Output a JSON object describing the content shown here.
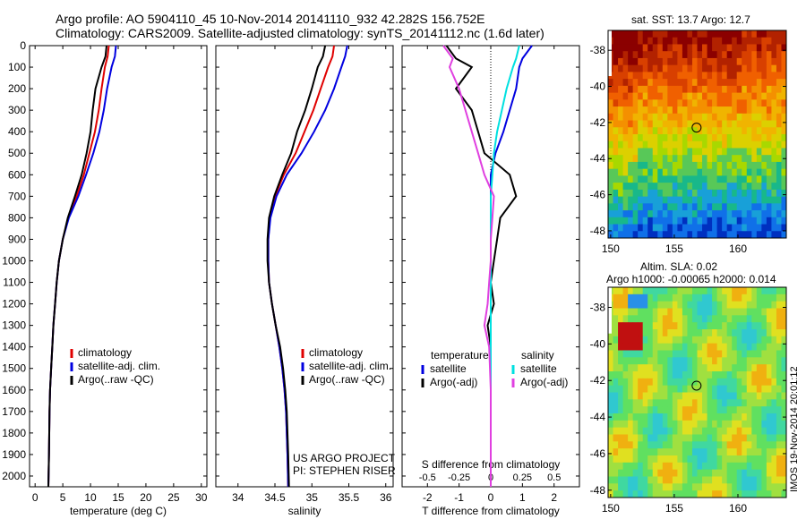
{
  "header": {
    "title_line1": "Argo profile: AO 5904110_45 10-Nov-2014 20141110_932 42.282S 156.752E",
    "title_line2": "Climatology: CARS2009. Satellite-adjusted climatology: synTS_20141112.nc (1.6d later)"
  },
  "colors": {
    "climatology": "#e00000",
    "satellite": "#0000e0",
    "argo": "#000000",
    "sal_satellite": "#00e0e0",
    "sal_argo": "#e040e0"
  },
  "depth_axis": {
    "ticks": [
      "0",
      "100",
      "200",
      "300",
      "400",
      "500",
      "600",
      "700",
      "800",
      "900",
      "1000",
      "1100",
      "1200",
      "1300",
      "1400",
      "1500",
      "1600",
      "1700",
      "1800",
      "1900",
      "2000"
    ]
  },
  "legend": {
    "climatology": "climatology",
    "satellite_adj": "satellite-adj. clim.",
    "argo": "Argo(..raw -QC)",
    "diff_temperature": "temperature",
    "diff_salinity": "salinity",
    "diff_satellite": "satellite",
    "diff_argo": "Argo(-adj)"
  },
  "project": {
    "line1": "US ARGO PROJECT",
    "line2": "PI: STEPHEN RISER"
  },
  "maps": {
    "sst_title": "sat. SST: 13.7 Argo: 12.7",
    "sla_title1": "Altim. SLA: 0.02",
    "sla_title2": "Argo h1000: -0.00065 h2000: 0.014",
    "lat_ticks": [
      "-38",
      "-40",
      "-42",
      "-44",
      "-46",
      "-48"
    ],
    "lon_ticks": [
      "150",
      "155",
      "160"
    ],
    "float_lat": -42.282,
    "float_lon": 156.752
  },
  "credit": "IMOS 19-Nov-2014 20:01:12",
  "chart_data": [
    {
      "type": "line",
      "xlabel": "temperature (deg C)",
      "ylim": [
        2050,
        0
      ],
      "xlim": [
        -1,
        31
      ],
      "x_ticks": [
        "0",
        "5",
        "10",
        "15",
        "20",
        "25",
        "30"
      ],
      "series": [
        {
          "name": "climatology",
          "x": [
            13.3,
            13.1,
            12.6,
            12.0,
            11.5,
            10.8,
            9.8,
            8.8,
            7.5,
            6.0,
            5.0,
            4.3,
            3.9,
            3.6,
            3.3,
            3.1,
            2.9,
            2.7,
            2.6,
            2.5,
            2.4
          ],
          "y": [
            0,
            50,
            100,
            200,
            300,
            400,
            500,
            600,
            700,
            800,
            900,
            1000,
            1100,
            1200,
            1300,
            1400,
            1500,
            1600,
            1700,
            1900,
            2050
          ]
        },
        {
          "name": "satellite-adj. clim.",
          "x": [
            14.6,
            14.4,
            13.8,
            13.0,
            12.4,
            11.6,
            10.5,
            9.2,
            7.8,
            6.1,
            5.0,
            4.3,
            3.9,
            3.6,
            3.3,
            3.1,
            2.9,
            2.7,
            2.6,
            2.5,
            2.4
          ],
          "y": [
            0,
            50,
            100,
            200,
            300,
            400,
            500,
            600,
            700,
            800,
            900,
            1000,
            1100,
            1200,
            1300,
            1400,
            1500,
            1600,
            1700,
            1900,
            2050
          ]
        },
        {
          "name": "Argo(..raw -QC)",
          "x": [
            12.9,
            12.7,
            12.0,
            10.9,
            10.4,
            10.0,
            9.3,
            8.4,
            7.2,
            5.9,
            5.0,
            4.3,
            3.9,
            3.6,
            3.3,
            3.1,
            2.9,
            2.7,
            2.6,
            2.5,
            2.4
          ],
          "y": [
            0,
            50,
            100,
            200,
            300,
            400,
            500,
            600,
            700,
            800,
            900,
            1000,
            1100,
            1200,
            1300,
            1400,
            1500,
            1600,
            1700,
            1900,
            2050
          ]
        }
      ]
    },
    {
      "type": "line",
      "xlabel": "salinity",
      "ylim": [
        2050,
        0
      ],
      "xlim": [
        33.7,
        36.1
      ],
      "x_ticks": [
        "34",
        "34.5",
        "35",
        "35.5",
        "36"
      ],
      "series": [
        {
          "name": "climatology",
          "x": [
            35.3,
            35.28,
            35.22,
            35.12,
            35.02,
            34.9,
            34.78,
            34.62,
            34.5,
            34.43,
            34.41,
            34.41,
            34.42,
            34.46,
            34.51,
            34.56,
            34.6,
            34.63,
            34.65,
            34.67,
            34.68
          ],
          "y": [
            0,
            50,
            100,
            200,
            300,
            400,
            500,
            600,
            700,
            800,
            900,
            1000,
            1100,
            1200,
            1300,
            1400,
            1500,
            1600,
            1700,
            1900,
            2050
          ]
        },
        {
          "name": "satellite-adj. clim.",
          "x": [
            35.48,
            35.45,
            35.4,
            35.3,
            35.18,
            35.03,
            34.86,
            34.66,
            34.52,
            34.44,
            34.41,
            34.41,
            34.42,
            34.46,
            34.51,
            34.56,
            34.6,
            34.63,
            34.65,
            34.67,
            34.68
          ],
          "y": [
            0,
            50,
            100,
            200,
            300,
            400,
            500,
            600,
            700,
            800,
            900,
            1000,
            1100,
            1200,
            1300,
            1400,
            1500,
            1600,
            1700,
            1900,
            2050
          ]
        },
        {
          "name": "Argo(..raw -QC)",
          "x": [
            35.18,
            35.15,
            35.08,
            35.0,
            34.91,
            34.8,
            34.72,
            34.6,
            34.49,
            34.42,
            34.4,
            34.4,
            34.42,
            34.46,
            34.51,
            34.57,
            34.61,
            34.64,
            34.66,
            34.68,
            34.69
          ],
          "y": [
            0,
            50,
            100,
            200,
            300,
            400,
            500,
            600,
            700,
            800,
            900,
            1000,
            1100,
            1200,
            1300,
            1400,
            1500,
            1600,
            1700,
            1900,
            2050
          ]
        }
      ]
    },
    {
      "type": "line",
      "xlabel": "T difference from climatology",
      "x2label": "S difference from climatology",
      "ylim": [
        2050,
        0
      ],
      "xlim": [
        -2.8,
        2.8
      ],
      "x_ticks": [
        "-2",
        "-1",
        "0",
        "1",
        "2"
      ],
      "x_top_ticks": [
        "-0.5",
        "-0.25",
        "0",
        "0.25",
        "0.5"
      ],
      "series": [
        {
          "name": "satellite (temperature)",
          "x": [
            1.3,
            1.0,
            0.9,
            0.8,
            0.6,
            0.4,
            0.15,
            0.0,
            0.0,
            0.0,
            0.0,
            0.0,
            0.0,
            0.0,
            0.0,
            0.0,
            0.0,
            0.0,
            0.0
          ],
          "y": [
            0,
            60,
            100,
            200,
            300,
            400,
            500,
            600,
            700,
            800,
            900,
            1000,
            1100,
            1200,
            1300,
            1400,
            1600,
            1800,
            2050
          ]
        },
        {
          "name": "Argo(-adj) (temperature)",
          "x": [
            -1.4,
            -1.1,
            -0.6,
            -1.1,
            -0.6,
            -0.4,
            -0.2,
            0.6,
            0.8,
            0.3,
            0.2,
            0.1,
            0.0,
            0.1,
            -0.1,
            0.0,
            0.0,
            0.0,
            0.0
          ],
          "y": [
            0,
            60,
            100,
            200,
            300,
            400,
            500,
            600,
            700,
            800,
            900,
            1000,
            1100,
            1200,
            1300,
            1400,
            1600,
            1800,
            2050
          ]
        },
        {
          "name": "satellite (salinity)",
          "x": [
            0.9,
            0.8,
            0.7,
            0.5,
            0.35,
            0.2,
            0.1,
            0.05,
            0.0,
            0.0,
            0.0,
            0.0,
            0.0,
            0.0,
            0.0,
            0.0,
            0.0,
            0.0,
            0.0
          ],
          "y": [
            0,
            60,
            100,
            200,
            300,
            400,
            500,
            600,
            700,
            800,
            900,
            1000,
            1100,
            1200,
            1300,
            1400,
            1600,
            1800,
            2050
          ]
        },
        {
          "name": "Argo(-adj) (salinity)",
          "x": [
            -1.5,
            -1.2,
            -1.3,
            -1.0,
            -0.8,
            -0.6,
            -0.4,
            -0.2,
            0.1,
            0.05,
            0.0,
            0.0,
            -0.05,
            -0.1,
            -0.2,
            -0.05,
            0.0,
            0.0,
            0.0
          ],
          "y": [
            0,
            60,
            100,
            200,
            300,
            400,
            500,
            600,
            700,
            800,
            900,
            1000,
            1100,
            1200,
            1300,
            1400,
            1600,
            1800,
            2050
          ]
        }
      ]
    }
  ]
}
